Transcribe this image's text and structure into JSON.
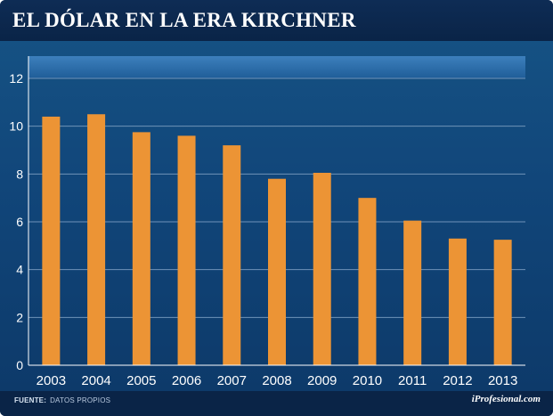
{
  "header": {
    "title": "EL DÓLAR EN LA ERA KIRCHNER"
  },
  "footer": {
    "source_label": "FUENTE:",
    "source_value": "DATOS PROPIOS",
    "brand": "iProfesional.com"
  },
  "colors": {
    "bar": "#ec9435",
    "grid": "#6f93b8",
    "background": "#0a2447"
  },
  "chart_data": {
    "type": "bar",
    "title": "EL DÓLAR EN LA ERA KIRCHNER",
    "xlabel": "",
    "ylabel": "",
    "categories": [
      "2003",
      "2004",
      "2005",
      "2006",
      "2007",
      "2008",
      "2009",
      "2010",
      "2011",
      "2012",
      "2013"
    ],
    "values": [
      10.4,
      10.5,
      9.75,
      9.6,
      9.2,
      7.8,
      8.05,
      7.0,
      6.05,
      5.3,
      5.25
    ],
    "ylim": [
      0,
      12
    ],
    "yticks": [
      0,
      2,
      4,
      6,
      8,
      10,
      12
    ],
    "grid": true
  }
}
